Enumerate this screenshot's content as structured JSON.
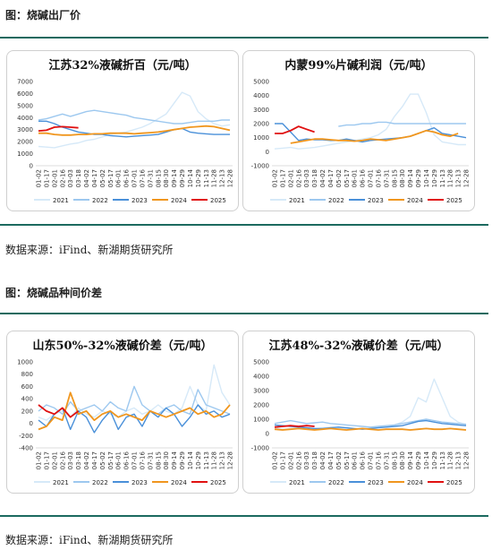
{
  "sections": [
    {
      "title": "图：烧碱出厂价",
      "source": "数据来源：iFind、新湖期货研究所"
    },
    {
      "title": "图：烧碱品种间价差",
      "source": "数据来源：iFind、新湖期货研究所"
    }
  ],
  "legend_colors": {
    "2021": "#d6e9f8",
    "2022": "#9dc8ef",
    "2023": "#4a90d9",
    "2024": "#f0961e",
    "2025": "#e01010"
  },
  "chart_data": [
    {
      "type": "line",
      "title": "江苏32%液碱折百（元/吨）",
      "ylim": [
        0,
        7000
      ],
      "yticks": [
        0,
        1000,
        2000,
        3000,
        4000,
        5000,
        6000,
        7000
      ],
      "x_ticks": [
        "01-02",
        "01-17",
        "02-01",
        "02-16",
        "03-03",
        "03-18",
        "04-02",
        "04-17",
        "05-02",
        "05-17",
        "06-01",
        "06-16",
        "07-01",
        "07-16",
        "07-31",
        "08-15",
        "08-30",
        "09-14",
        "09-29",
        "10-14",
        "10-29",
        "11-13",
        "11-28",
        "12-13",
        "12-28"
      ],
      "series": [
        {
          "name": "2021",
          "values": [
            1600,
            1550,
            1500,
            1650,
            1800,
            1900,
            2100,
            2200,
            2400,
            2600,
            2700,
            2800,
            3000,
            3200,
            3500,
            3900,
            4300,
            5200,
            6100,
            5800,
            4500,
            3900,
            3500,
            3300,
            3400
          ]
        },
        {
          "name": "2022",
          "values": [
            3800,
            3900,
            4100,
            4300,
            4100,
            4300,
            4500,
            4600,
            4500,
            4400,
            4300,
            4200,
            4000,
            3900,
            3800,
            3700,
            3600,
            3500,
            3500,
            3600,
            3700,
            3700,
            3700,
            3800,
            3800
          ]
        },
        {
          "name": "2023",
          "values": [
            3700,
            3700,
            3500,
            3200,
            3000,
            2800,
            2700,
            2600,
            2600,
            2500,
            2450,
            2400,
            2450,
            2500,
            2550,
            2600,
            2800,
            3000,
            3100,
            2800,
            2700,
            2650,
            2600,
            2600,
            2600
          ]
        },
        {
          "name": "2024",
          "values": [
            2700,
            2700,
            2600,
            2550,
            2550,
            2600,
            2600,
            2650,
            2650,
            2700,
            2700,
            2700,
            2650,
            2700,
            2750,
            2800,
            2900,
            3000,
            3100,
            3200,
            3250,
            3300,
            3250,
            3100,
            2950
          ]
        },
        {
          "name": "2025",
          "values": [
            2900,
            2950,
            3200,
            3250,
            3200,
            3150
          ]
        }
      ]
    },
    {
      "type": "line",
      "title": "内蒙99%片碱利润（元/吨）",
      "ylim": [
        -1000,
        5000
      ],
      "yticks": [
        -1000,
        0,
        1000,
        2000,
        3000,
        4000,
        5000
      ],
      "x_ticks": [
        "01-02",
        "01-17",
        "02-01",
        "02-16",
        "03-03",
        "03-18",
        "04-02",
        "04-17",
        "05-02",
        "05-17",
        "06-01",
        "06-16",
        "07-01",
        "07-16",
        "07-31",
        "08-15",
        "08-30",
        "09-14",
        "09-29",
        "10-14",
        "10-29",
        "11-13",
        "11-28",
        "12-13",
        "12-28"
      ],
      "series": [
        {
          "name": "2021",
          "values": [
            200,
            250,
            300,
            200,
            250,
            300,
            400,
            500,
            600,
            700,
            800,
            900,
            1000,
            1200,
            1600,
            2500,
            3200,
            4100,
            4100,
            2800,
            1200,
            700,
            600,
            500,
            500
          ]
        },
        {
          "name": "2022",
          "values": [
            null,
            null,
            null,
            null,
            null,
            null,
            null,
            null,
            1800,
            1900,
            1900,
            2000,
            2000,
            2100,
            2100,
            2000,
            2000,
            2000,
            2000,
            2000,
            2000,
            2000,
            2000,
            2000,
            2000
          ]
        },
        {
          "name": "2023",
          "values": [
            2000,
            2000,
            1400,
            800,
            900,
            850,
            850,
            800,
            800,
            900,
            800,
            700,
            800,
            850,
            900,
            950,
            1000,
            1100,
            1300,
            1500,
            1700,
            1300,
            1200,
            1100,
            1000
          ]
        },
        {
          "name": "2024",
          "values": [
            null,
            null,
            600,
            700,
            800,
            900,
            900,
            850,
            800,
            800,
            750,
            800,
            900,
            850,
            800,
            900,
            1000,
            1100,
            1300,
            1500,
            1400,
            1200,
            1100,
            1300,
            null
          ]
        },
        {
          "name": "2025",
          "values": [
            1300,
            1300,
            1500,
            1800,
            1600,
            1400
          ]
        }
      ]
    },
    {
      "type": "line",
      "title": "山东50%-32%液碱价差（元/吨）",
      "ylim": [
        -400,
        1000
      ],
      "yticks": [
        -400,
        -200,
        0,
        200,
        400,
        600,
        800,
        1000
      ],
      "x_ticks": [
        "01-02",
        "01-17",
        "02-01",
        "02-16",
        "03-03",
        "03-18",
        "04-02",
        "04-17",
        "05-02",
        "05-17",
        "06-01",
        "06-16",
        "07-01",
        "07-16",
        "07-31",
        "08-15",
        "08-30",
        "09-14",
        "09-29",
        "10-14",
        "10-29",
        "11-13",
        "11-28",
        "12-13",
        "12-28"
      ],
      "series": [
        {
          "name": "2021",
          "values": [
            100,
            50,
            150,
            200,
            100,
            250,
            150,
            100,
            200,
            150,
            100,
            200,
            250,
            150,
            200,
            300,
            200,
            150,
            250,
            600,
            300,
            200,
            950,
            500,
            300
          ]
        },
        {
          "name": "2022",
          "values": [
            200,
            300,
            250,
            150,
            350,
            200,
            250,
            300,
            200,
            350,
            250,
            200,
            600,
            300,
            200,
            150,
            250,
            300,
            200,
            150,
            550,
            300,
            250,
            200,
            150
          ]
        },
        {
          "name": "2023",
          "values": [
            50,
            -50,
            150,
            250,
            -100,
            200,
            100,
            -150,
            50,
            200,
            -100,
            100,
            150,
            -50,
            200,
            100,
            250,
            150,
            -50,
            100,
            300,
            150,
            200,
            100,
            150
          ]
        },
        {
          "name": "2024",
          "values": [
            -100,
            -50,
            100,
            50,
            500,
            150,
            200,
            50,
            150,
            200,
            100,
            150,
            100,
            50,
            200,
            150,
            100,
            150,
            200,
            250,
            150,
            200,
            100,
            150,
            300
          ]
        },
        {
          "name": "2025",
          "values": [
            300,
            200,
            150,
            250,
            100,
            200
          ]
        }
      ]
    },
    {
      "type": "line",
      "title": "江苏48%-32%液碱价差（元/吨）",
      "ylim": [
        -1000,
        5000
      ],
      "yticks": [
        -1000,
        0,
        1000,
        2000,
        3000,
        4000,
        5000
      ],
      "x_ticks": [
        "01-02",
        "01-17",
        "02-01",
        "02-16",
        "03-03",
        "03-18",
        "04-02",
        "04-17",
        "05-02",
        "05-17",
        "06-01",
        "06-16",
        "07-01",
        "07-16",
        "07-31",
        "08-15",
        "08-30",
        "09-14",
        "09-29",
        "10-14",
        "10-29",
        "11-13",
        "11-28",
        "12-13",
        "12-28"
      ],
      "series": [
        {
          "name": "2021",
          "values": [
            400,
            300,
            350,
            400,
            300,
            350,
            400,
            450,
            400,
            350,
            300,
            350,
            400,
            450,
            500,
            600,
            800,
            1200,
            2500,
            2200,
            3800,
            2500,
            1200,
            800,
            600
          ]
        },
        {
          "name": "2022",
          "values": [
            700,
            800,
            900,
            800,
            700,
            750,
            800,
            700,
            650,
            600,
            550,
            500,
            450,
            500,
            550,
            600,
            700,
            800,
            900,
            1000,
            900,
            800,
            750,
            700,
            650
          ]
        },
        {
          "name": "2023",
          "values": [
            600,
            550,
            500,
            450,
            400,
            350,
            350,
            400,
            450,
            400,
            350,
            300,
            350,
            400,
            450,
            500,
            550,
            700,
            850,
            900,
            800,
            700,
            650,
            600,
            550
          ]
        },
        {
          "name": "2024",
          "values": [
            300,
            250,
            300,
            350,
            300,
            250,
            300,
            350,
            300,
            250,
            300,
            350,
            300,
            250,
            300,
            300,
            300,
            250,
            300,
            350,
            300,
            300,
            350,
            300,
            250
          ]
        },
        {
          "name": "2025",
          "values": [
            450,
            500,
            550,
            500,
            550,
            500
          ]
        }
      ]
    }
  ]
}
